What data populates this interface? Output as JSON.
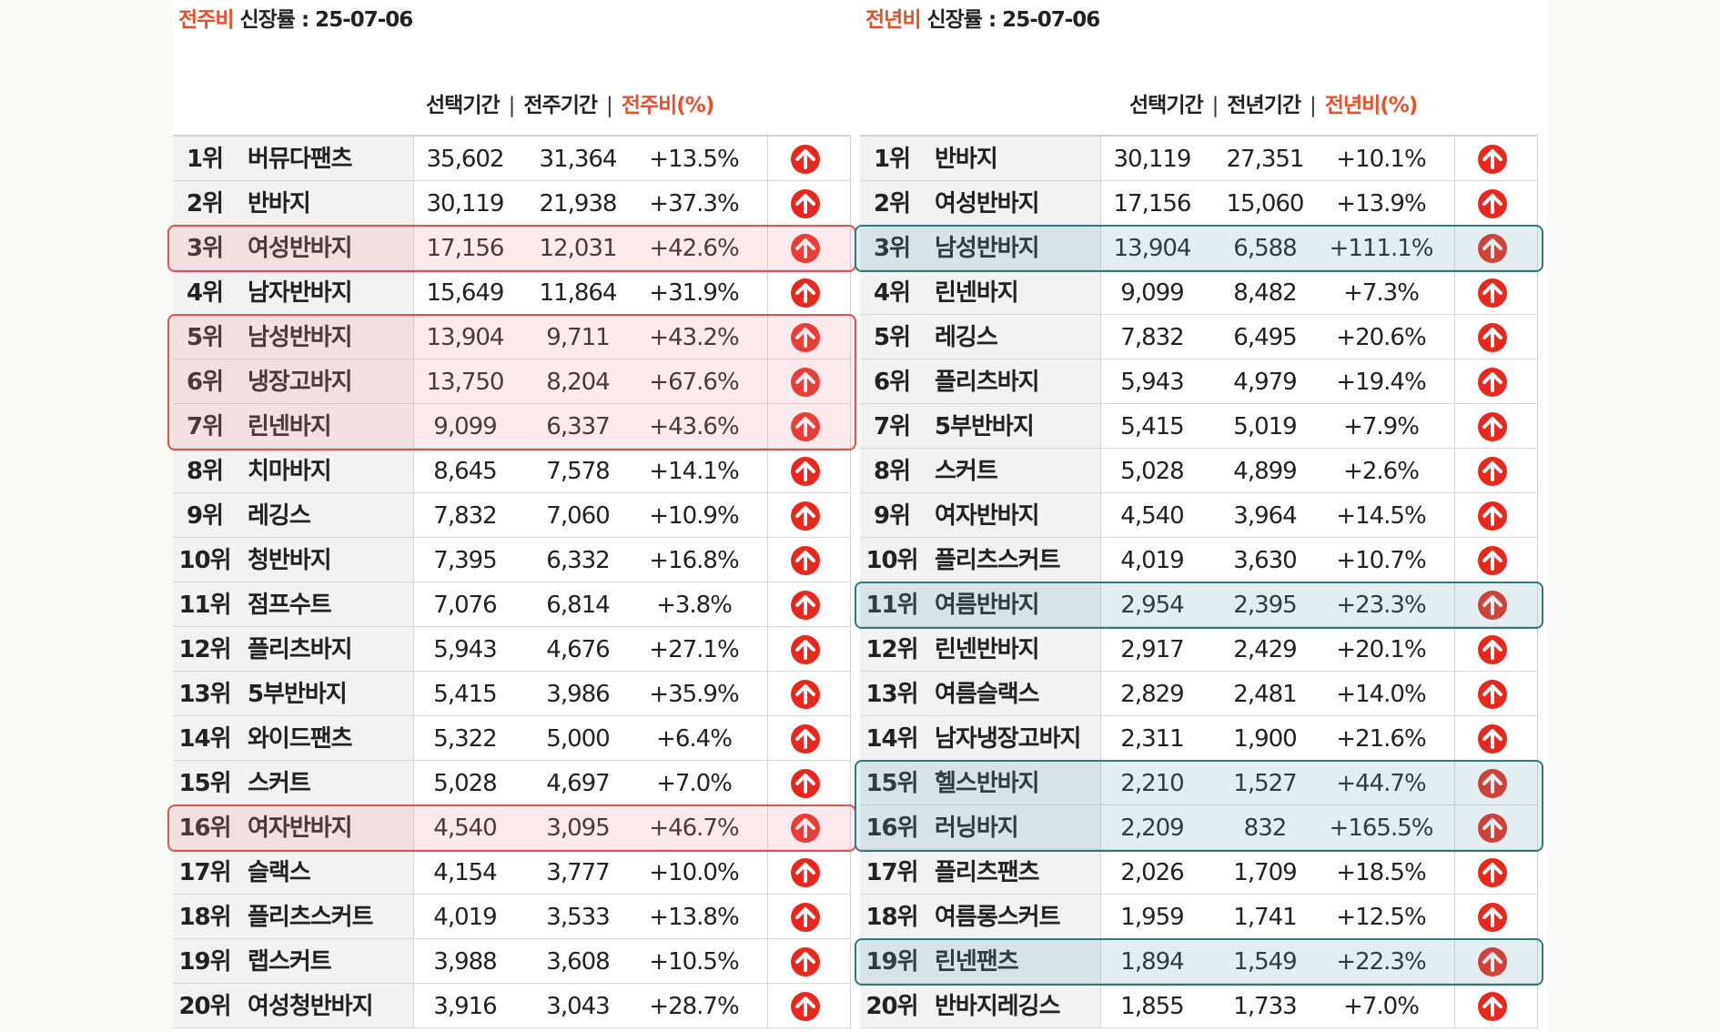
{
  "left": {
    "title_hl": "전주비",
    "title_rest": " 신장률 : 25-07-06",
    "headers": {
      "sel": "선택기간",
      "sep": "|",
      "prev": "전주기간",
      "pct": "전주비(%)"
    },
    "rows": [
      {
        "rank": "1위",
        "name": "버뮤다팬츠",
        "sel": "35,602",
        "prev": "31,364",
        "pct": "+13.5%"
      },
      {
        "rank": "2위",
        "name": "반바지",
        "sel": "30,119",
        "prev": "21,938",
        "pct": "+37.3%"
      },
      {
        "rank": "3위",
        "name": "여성반바지",
        "sel": "17,156",
        "prev": "12,031",
        "pct": "+42.6%"
      },
      {
        "rank": "4위",
        "name": "남자반바지",
        "sel": "15,649",
        "prev": "11,864",
        "pct": "+31.9%"
      },
      {
        "rank": "5위",
        "name": "남성반바지",
        "sel": "13,904",
        "prev": "9,711",
        "pct": "+43.2%"
      },
      {
        "rank": "6위",
        "name": "냉장고바지",
        "sel": "13,750",
        "prev": "8,204",
        "pct": "+67.6%"
      },
      {
        "rank": "7위",
        "name": "린넨바지",
        "sel": "9,099",
        "prev": "6,337",
        "pct": "+43.6%"
      },
      {
        "rank": "8위",
        "name": "치마바지",
        "sel": "8,645",
        "prev": "7,578",
        "pct": "+14.1%"
      },
      {
        "rank": "9위",
        "name": "레깅스",
        "sel": "7,832",
        "prev": "7,060",
        "pct": "+10.9%"
      },
      {
        "rank": "10위",
        "name": "청반바지",
        "sel": "7,395",
        "prev": "6,332",
        "pct": "+16.8%"
      },
      {
        "rank": "11위",
        "name": "점프수트",
        "sel": "7,076",
        "prev": "6,814",
        "pct": "+3.8%"
      },
      {
        "rank": "12위",
        "name": "플리츠바지",
        "sel": "5,943",
        "prev": "4,676",
        "pct": "+27.1%"
      },
      {
        "rank": "13위",
        "name": "5부반바지",
        "sel": "5,415",
        "prev": "3,986",
        "pct": "+35.9%"
      },
      {
        "rank": "14위",
        "name": "와이드팬츠",
        "sel": "5,322",
        "prev": "5,000",
        "pct": "+6.4%"
      },
      {
        "rank": "15위",
        "name": "스커트",
        "sel": "5,028",
        "prev": "4,697",
        "pct": "+7.0%"
      },
      {
        "rank": "16위",
        "name": "여자반바지",
        "sel": "4,540",
        "prev": "3,095",
        "pct": "+46.7%"
      },
      {
        "rank": "17위",
        "name": "슬랙스",
        "sel": "4,154",
        "prev": "3,777",
        "pct": "+10.0%"
      },
      {
        "rank": "18위",
        "name": "플리츠스커트",
        "sel": "4,019",
        "prev": "3,533",
        "pct": "+13.8%"
      },
      {
        "rank": "19위",
        "name": "랩스커트",
        "sel": "3,988",
        "prev": "3,608",
        "pct": "+10.5%"
      },
      {
        "rank": "20위",
        "name": "여성청반바지",
        "sel": "3,916",
        "prev": "3,043",
        "pct": "+28.7%"
      }
    ],
    "highlights": [
      [
        3,
        3
      ],
      [
        5,
        7
      ],
      [
        16,
        16
      ]
    ]
  },
  "right": {
    "title_hl": "전년비",
    "title_rest": " 신장률 : 25-07-06",
    "headers": {
      "sel": "선택기간",
      "sep": "|",
      "prev": "전년기간",
      "pct": "전년비(%)"
    },
    "rows": [
      {
        "rank": "1위",
        "name": "반바지",
        "sel": "30,119",
        "prev": "27,351",
        "pct": "+10.1%"
      },
      {
        "rank": "2위",
        "name": "여성반바지",
        "sel": "17,156",
        "prev": "15,060",
        "pct": "+13.9%"
      },
      {
        "rank": "3위",
        "name": "남성반바지",
        "sel": "13,904",
        "prev": "6,588",
        "pct": "+111.1%"
      },
      {
        "rank": "4위",
        "name": "린넨바지",
        "sel": "9,099",
        "prev": "8,482",
        "pct": "+7.3%"
      },
      {
        "rank": "5위",
        "name": "레깅스",
        "sel": "7,832",
        "prev": "6,495",
        "pct": "+20.6%"
      },
      {
        "rank": "6위",
        "name": "플리츠바지",
        "sel": "5,943",
        "prev": "4,979",
        "pct": "+19.4%"
      },
      {
        "rank": "7위",
        "name": "5부반바지",
        "sel": "5,415",
        "prev": "5,019",
        "pct": "+7.9%"
      },
      {
        "rank": "8위",
        "name": "스커트",
        "sel": "5,028",
        "prev": "4,899",
        "pct": "+2.6%"
      },
      {
        "rank": "9위",
        "name": "여자반바지",
        "sel": "4,540",
        "prev": "3,964",
        "pct": "+14.5%"
      },
      {
        "rank": "10위",
        "name": "플리츠스커트",
        "sel": "4,019",
        "prev": "3,630",
        "pct": "+10.7%"
      },
      {
        "rank": "11위",
        "name": "여름반바지",
        "sel": "2,954",
        "prev": "2,395",
        "pct": "+23.3%"
      },
      {
        "rank": "12위",
        "name": "린넨반바지",
        "sel": "2,917",
        "prev": "2,429",
        "pct": "+20.1%"
      },
      {
        "rank": "13위",
        "name": "여름슬랙스",
        "sel": "2,829",
        "prev": "2,481",
        "pct": "+14.0%"
      },
      {
        "rank": "14위",
        "name": "남자냉장고바지",
        "sel": "2,311",
        "prev": "1,900",
        "pct": "+21.6%"
      },
      {
        "rank": "15위",
        "name": "헬스반바지",
        "sel": "2,210",
        "prev": "1,527",
        "pct": "+44.7%"
      },
      {
        "rank": "16위",
        "name": "러닝바지",
        "sel": "2,209",
        "prev": "832",
        "pct": "+165.5%"
      },
      {
        "rank": "17위",
        "name": "플리츠팬츠",
        "sel": "2,026",
        "prev": "1,709",
        "pct": "+18.5%"
      },
      {
        "rank": "18위",
        "name": "여름롱스커트",
        "sel": "1,959",
        "prev": "1,741",
        "pct": "+12.5%"
      },
      {
        "rank": "19위",
        "name": "린넨팬츠",
        "sel": "1,894",
        "prev": "1,549",
        "pct": "+22.3%"
      },
      {
        "rank": "20위",
        "name": "반바지레깅스",
        "sel": "1,855",
        "prev": "1,733",
        "pct": "+7.0%"
      }
    ],
    "highlights": [
      [
        3,
        3
      ],
      [
        11,
        11
      ],
      [
        15,
        16
      ],
      [
        19,
        19
      ]
    ]
  },
  "icon": "arrow-up-circle-icon",
  "colors": {
    "accent": "#e8502a",
    "arrow": "#e8281c",
    "red_highlight": "#e25252",
    "teal_highlight": "#2e7a80"
  }
}
